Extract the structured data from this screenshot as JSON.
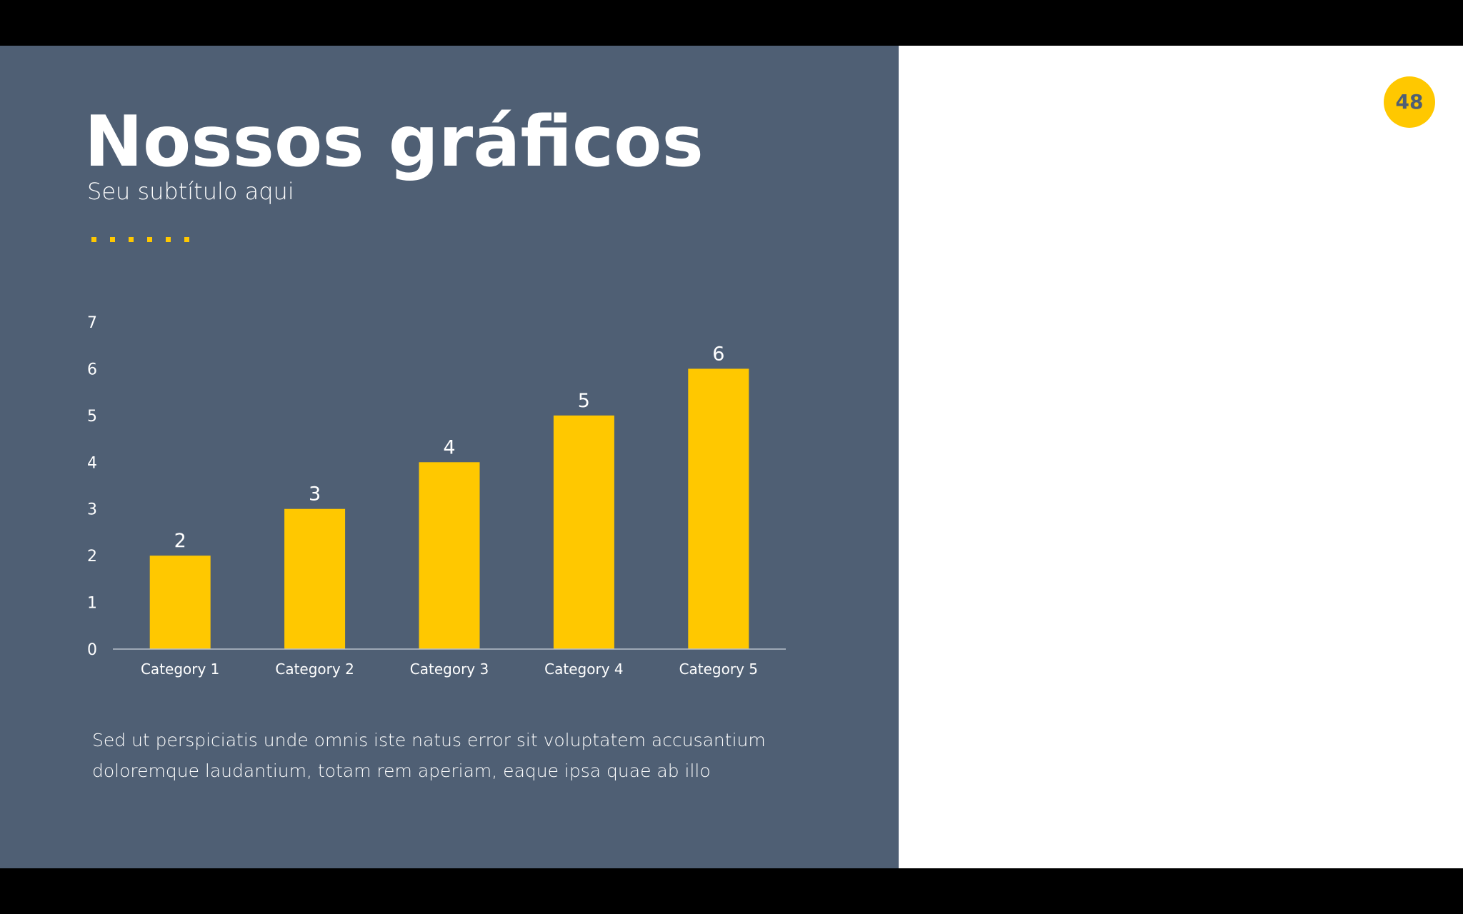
{
  "title": "Nossos gráficos",
  "subtitle": "Seu subtítulo aqui",
  "page_number": "48",
  "body": [
    "Sed ut perspiciatis unde omnis iste natus error sit voluptatem accusantium",
    "doloremque laudantium, totam rem aperiam, eaque ipsa quae ab illo"
  ],
  "chart_data": {
    "type": "bar",
    "categories": [
      "Category 1",
      "Category 2",
      "Category 3",
      "Category 4",
      "Category 5"
    ],
    "values": [
      2,
      3,
      4,
      5,
      6
    ],
    "color": "#ffc800",
    "ylim": [
      0,
      7
    ],
    "yticks": [
      0,
      1,
      2,
      3,
      4,
      5,
      6,
      7
    ],
    "grid": false,
    "data_labels": true
  }
}
